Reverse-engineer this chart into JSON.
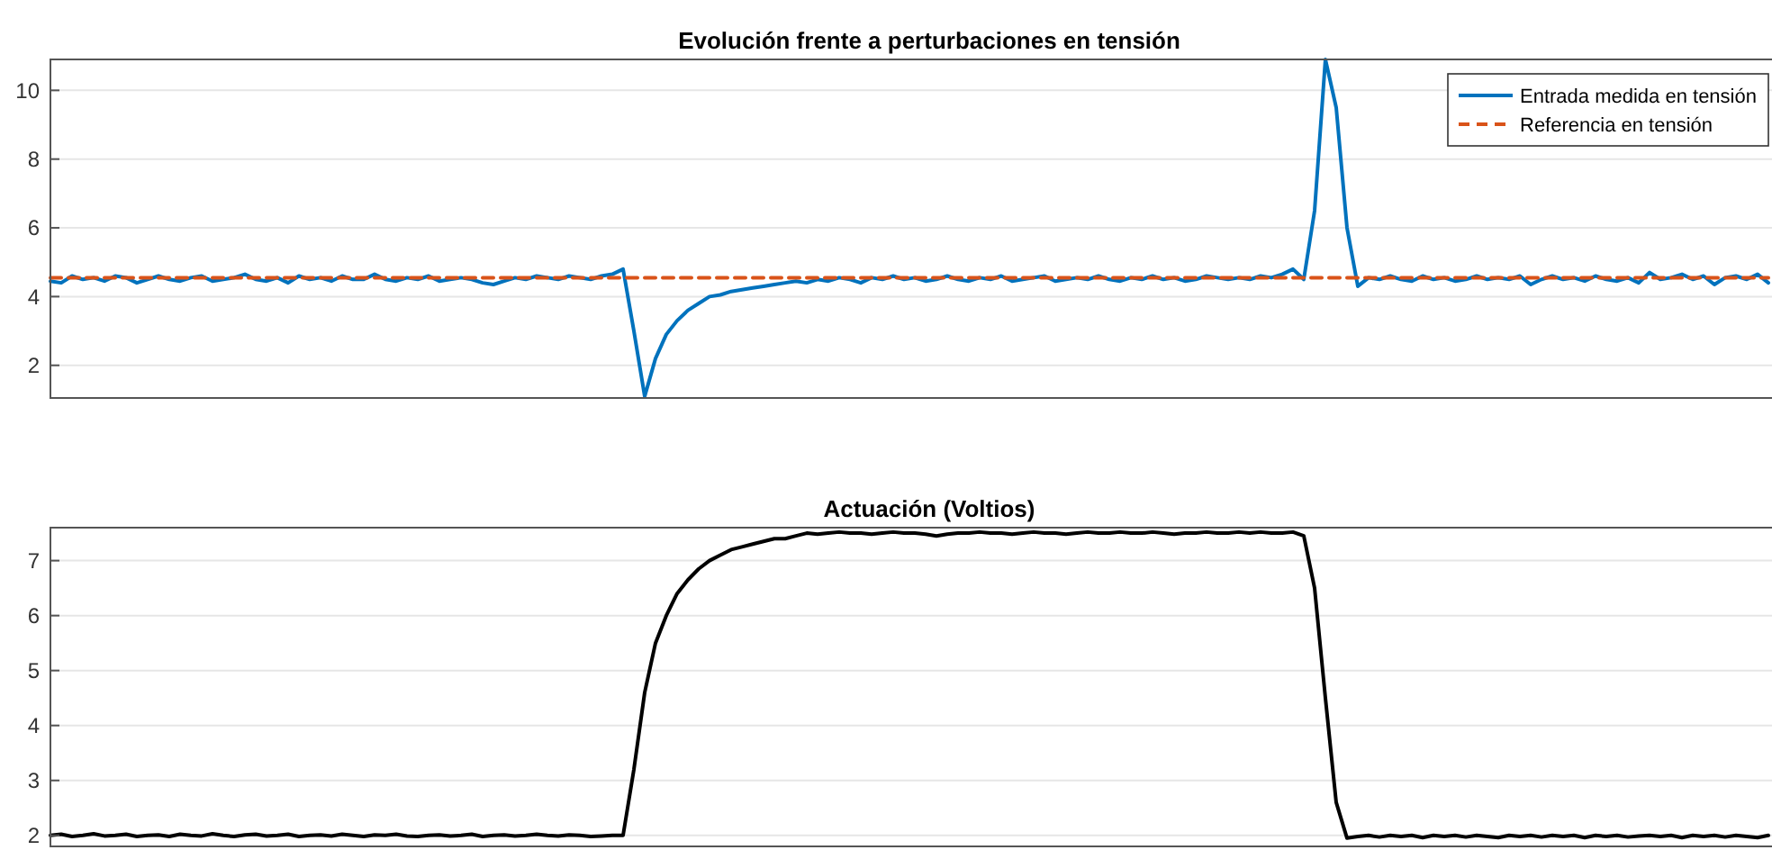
{
  "chart_data": [
    {
      "type": "line",
      "title": "Evolución frente a perturbaciones en tensión",
      "ylim": [
        1.05,
        10.9
      ],
      "yticks": [
        2,
        4,
        6,
        8,
        10
      ],
      "grid": "y",
      "legend": "top right",
      "tick_labels": "y",
      "categories": [
        null,
        null,
        null,
        null,
        null,
        null,
        null,
        null,
        null,
        null,
        null,
        null,
        null,
        null,
        null,
        null,
        null,
        null,
        null,
        null,
        null,
        null,
        null,
        null,
        null,
        null,
        null,
        null,
        null,
        null,
        null,
        null,
        null,
        null,
        null,
        null,
        null,
        null,
        null,
        null,
        null,
        null,
        null,
        null,
        null,
        null,
        null,
        null,
        null,
        null,
        null,
        null,
        null,
        null,
        null,
        null,
        null,
        null,
        null,
        null,
        null,
        null,
        null,
        null,
        null,
        null,
        null,
        null,
        null,
        null,
        null,
        null,
        null,
        null,
        null,
        null,
        null,
        null,
        null,
        null,
        null,
        null,
        null,
        null,
        null,
        null,
        null,
        null,
        null,
        null,
        null,
        null,
        null,
        null,
        null,
        null,
        null,
        null,
        null,
        null,
        null,
        null,
        null,
        null,
        null,
        null,
        null,
        null,
        null,
        null,
        null,
        null,
        null,
        null,
        null,
        null,
        null,
        null,
        null,
        null,
        null,
        null,
        null,
        null,
        null,
        null,
        null,
        null,
        null,
        null,
        null,
        null,
        null,
        null,
        null,
        null,
        null,
        null,
        null,
        null,
        null,
        null,
        null,
        null,
        null,
        null,
        null,
        null,
        null,
        null,
        null,
        null,
        null,
        null,
        null,
        null,
        null,
        null,
        null,
        null
      ],
      "series": [
        {
          "name": "Entrada medida en tensión",
          "color": "#0072bd",
          "line_style": "solid",
          "values": [
            4.45,
            4.4,
            4.6,
            4.5,
            4.55,
            4.45,
            4.6,
            4.55,
            4.4,
            4.5,
            4.6,
            4.5,
            4.45,
            4.55,
            4.6,
            4.45,
            4.5,
            4.55,
            4.65,
            4.5,
            4.45,
            4.55,
            4.4,
            4.6,
            4.5,
            4.55,
            4.45,
            4.6,
            4.5,
            4.5,
            4.65,
            4.5,
            4.45,
            4.55,
            4.5,
            4.6,
            4.45,
            4.5,
            4.55,
            4.5,
            4.4,
            4.35,
            4.45,
            4.55,
            4.5,
            4.6,
            4.55,
            4.5,
            4.6,
            4.55,
            4.5,
            4.6,
            4.65,
            4.8,
            3.0,
            1.1,
            2.2,
            2.9,
            3.3,
            3.6,
            3.8,
            4.0,
            4.05,
            4.15,
            4.2,
            4.25,
            4.3,
            4.35,
            4.4,
            4.45,
            4.4,
            4.5,
            4.45,
            4.55,
            4.5,
            4.4,
            4.55,
            4.5,
            4.6,
            4.5,
            4.55,
            4.45,
            4.5,
            4.6,
            4.5,
            4.45,
            4.55,
            4.5,
            4.6,
            4.45,
            4.5,
            4.55,
            4.6,
            4.45,
            4.5,
            4.55,
            4.5,
            4.6,
            4.5,
            4.45,
            4.55,
            4.5,
            4.6,
            4.5,
            4.55,
            4.45,
            4.5,
            4.6,
            4.55,
            4.5,
            4.55,
            4.5,
            4.6,
            4.55,
            4.65,
            4.8,
            4.5,
            6.5,
            10.9,
            9.5,
            6.0,
            4.3,
            4.55,
            4.5,
            4.6,
            4.5,
            4.45,
            4.6,
            4.5,
            4.55,
            4.45,
            4.5,
            4.6,
            4.5,
            4.55,
            4.5,
            4.6,
            4.35,
            4.5,
            4.6,
            4.5,
            4.55,
            4.45,
            4.6,
            4.5,
            4.45,
            4.55,
            4.4,
            4.7,
            4.5,
            4.55,
            4.65,
            4.5,
            4.6,
            4.35,
            4.55,
            4.6,
            4.5,
            4.65,
            4.4
          ]
        },
        {
          "name": "Referencia en tensión",
          "color": "#d95319",
          "line_style": "dashed",
          "values": [
            4.55,
            4.55,
            4.55,
            4.55,
            4.55,
            4.55,
            4.55,
            4.55,
            4.55,
            4.55,
            4.55,
            4.55,
            4.55,
            4.55,
            4.55,
            4.55,
            4.55,
            4.55,
            4.55,
            4.55,
            4.55,
            4.55,
            4.55,
            4.55,
            4.55,
            4.55,
            4.55,
            4.55,
            4.55,
            4.55,
            4.55,
            4.55,
            4.55,
            4.55,
            4.55,
            4.55,
            4.55,
            4.55,
            4.55,
            4.55,
            4.55,
            4.55,
            4.55,
            4.55,
            4.55,
            4.55,
            4.55,
            4.55,
            4.55,
            4.55,
            4.55,
            4.55,
            4.55,
            4.55,
            4.55,
            4.55,
            4.55,
            4.55,
            4.55,
            4.55,
            4.55,
            4.55,
            4.55,
            4.55,
            4.55,
            4.55,
            4.55,
            4.55,
            4.55,
            4.55,
            4.55,
            4.55,
            4.55,
            4.55,
            4.55,
            4.55,
            4.55,
            4.55,
            4.55,
            4.55,
            4.55,
            4.55,
            4.55,
            4.55,
            4.55,
            4.55,
            4.55,
            4.55,
            4.55,
            4.55,
            4.55,
            4.55,
            4.55,
            4.55,
            4.55,
            4.55,
            4.55,
            4.55,
            4.55,
            4.55,
            4.55,
            4.55,
            4.55,
            4.55,
            4.55,
            4.55,
            4.55,
            4.55,
            4.55,
            4.55,
            4.55,
            4.55,
            4.55,
            4.55,
            4.55,
            4.55,
            4.55,
            4.55,
            4.55,
            4.55,
            4.55,
            4.55,
            4.55,
            4.55,
            4.55,
            4.55,
            4.55,
            4.55,
            4.55,
            4.55,
            4.55,
            4.55,
            4.55,
            4.55,
            4.55,
            4.55,
            4.55,
            4.55,
            4.55,
            4.55,
            4.55,
            4.55,
            4.55,
            4.55,
            4.55,
            4.55,
            4.55,
            4.55,
            4.55,
            4.55,
            4.55,
            4.55,
            4.55,
            4.55,
            4.55,
            4.55,
            4.55,
            4.55,
            4.55,
            4.55
          ]
        }
      ]
    },
    {
      "type": "line",
      "title": "Actuación (Voltios)",
      "ylim": [
        1.8,
        7.6
      ],
      "yticks": [
        2,
        3,
        4,
        5,
        6,
        7
      ],
      "grid": "y",
      "tick_labels": "y",
      "categories": [
        null,
        null,
        null,
        null,
        null,
        null,
        null,
        null,
        null,
        null,
        null,
        null,
        null,
        null,
        null,
        null,
        null,
        null,
        null,
        null,
        null,
        null,
        null,
        null,
        null,
        null,
        null,
        null,
        null,
        null,
        null,
        null,
        null,
        null,
        null,
        null,
        null,
        null,
        null,
        null,
        null,
        null,
        null,
        null,
        null,
        null,
        null,
        null,
        null,
        null,
        null,
        null,
        null,
        null,
        null,
        null,
        null,
        null,
        null,
        null,
        null,
        null,
        null,
        null,
        null,
        null,
        null,
        null,
        null,
        null,
        null,
        null,
        null,
        null,
        null,
        null,
        null,
        null,
        null,
        null,
        null,
        null,
        null,
        null,
        null,
        null,
        null,
        null,
        null,
        null,
        null,
        null,
        null,
        null,
        null,
        null,
        null,
        null,
        null,
        null,
        null,
        null,
        null,
        null,
        null,
        null,
        null,
        null,
        null,
        null,
        null,
        null,
        null,
        null,
        null,
        null,
        null,
        null,
        null,
        null,
        null,
        null,
        null,
        null,
        null,
        null,
        null,
        null,
        null,
        null,
        null,
        null,
        null,
        null,
        null,
        null,
        null,
        null,
        null,
        null,
        null,
        null,
        null,
        null,
        null,
        null,
        null,
        null,
        null,
        null,
        null,
        null,
        null,
        null,
        null,
        null,
        null,
        null,
        null,
        null
      ],
      "series": [
        {
          "color": "#000000",
          "line_style": "solid",
          "values": [
            2.0,
            2.02,
            1.98,
            2.0,
            2.03,
            1.99,
            2.0,
            2.02,
            1.98,
            2.0,
            2.01,
            1.98,
            2.02,
            2.0,
            1.99,
            2.03,
            2.0,
            1.98,
            2.01,
            2.02,
            1.99,
            2.0,
            2.02,
            1.98,
            2.0,
            2.01,
            1.99,
            2.02,
            2.0,
            1.98,
            2.01,
            2.0,
            2.02,
            1.99,
            1.98,
            2.0,
            2.01,
            1.99,
            2.0,
            2.02,
            1.98,
            2.0,
            2.01,
            1.99,
            2.0,
            2.02,
            2.0,
            1.99,
            2.01,
            2.0,
            1.98,
            1.99,
            2.0,
            2.0,
            3.2,
            4.6,
            5.5,
            6.0,
            6.4,
            6.65,
            6.85,
            7.0,
            7.1,
            7.2,
            7.25,
            7.3,
            7.35,
            7.4,
            7.4,
            7.45,
            7.5,
            7.48,
            7.5,
            7.52,
            7.5,
            7.5,
            7.48,
            7.5,
            7.52,
            7.5,
            7.5,
            7.48,
            7.45,
            7.48,
            7.5,
            7.5,
            7.52,
            7.5,
            7.5,
            7.48,
            7.5,
            7.52,
            7.5,
            7.5,
            7.48,
            7.5,
            7.52,
            7.5,
            7.5,
            7.52,
            7.5,
            7.5,
            7.52,
            7.5,
            7.48,
            7.5,
            7.5,
            7.52,
            7.5,
            7.5,
            7.52,
            7.5,
            7.52,
            7.5,
            7.5,
            7.52,
            7.45,
            6.5,
            4.5,
            2.6,
            1.95,
            1.98,
            2.0,
            1.97,
            2.0,
            1.98,
            2.0,
            1.96,
            2.0,
            1.98,
            2.0,
            1.97,
            2.0,
            1.98,
            1.96,
            2.0,
            1.98,
            2.0,
            1.97,
            2.0,
            1.98,
            2.0,
            1.96,
            2.0,
            1.98,
            2.0,
            1.97,
            1.99,
            2.0,
            1.98,
            2.0,
            1.96,
            2.0,
            1.98,
            2.0,
            1.97,
            2.0,
            1.98,
            1.96,
            2.0
          ]
        }
      ]
    }
  ]
}
